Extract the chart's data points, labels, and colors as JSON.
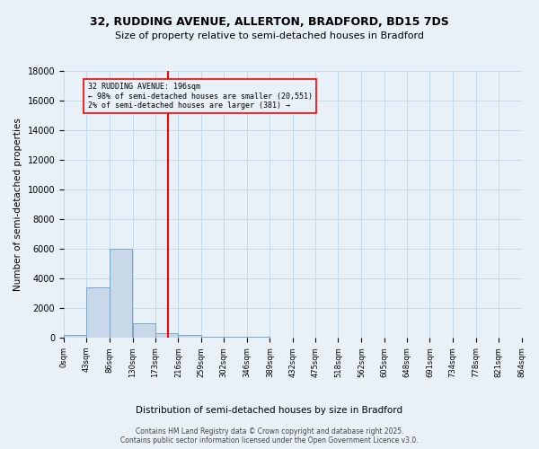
{
  "title1": "32, RUDDING AVENUE, ALLERTON, BRADFORD, BD15 7DS",
  "title2": "Size of property relative to semi-detached houses in Bradford",
  "xlabel": "Distribution of semi-detached houses by size in Bradford",
  "ylabel": "Number of semi-detached properties",
  "bin_edges": [
    0,
    43,
    86,
    130,
    173,
    216,
    259,
    302,
    346,
    389,
    432,
    475,
    518,
    562,
    605,
    648,
    691,
    734,
    778,
    821,
    864
  ],
  "bar_heights": [
    200,
    3400,
    6000,
    1000,
    300,
    200,
    100,
    50,
    50,
    30,
    20,
    15,
    10,
    8,
    5,
    5,
    3,
    2,
    2,
    1
  ],
  "bar_color": "#c8d8e8",
  "bar_edge_color": "#6a9ec0",
  "property_size": 196,
  "smaller_pct": 98,
  "smaller_count": 20551,
  "larger_pct": 2,
  "larger_count": 381,
  "vline_color": "red",
  "annotation_box_color": "red",
  "grid_color": "#c5d8ea",
  "bg_color": "#e8f0f8",
  "ylim": [
    0,
    18000
  ],
  "yticks": [
    0,
    2000,
    4000,
    6000,
    8000,
    10000,
    12000,
    14000,
    16000,
    18000
  ],
  "footer1": "Contains HM Land Registry data © Crown copyright and database right 2025.",
  "footer2": "Contains public sector information licensed under the Open Government Licence v3.0."
}
